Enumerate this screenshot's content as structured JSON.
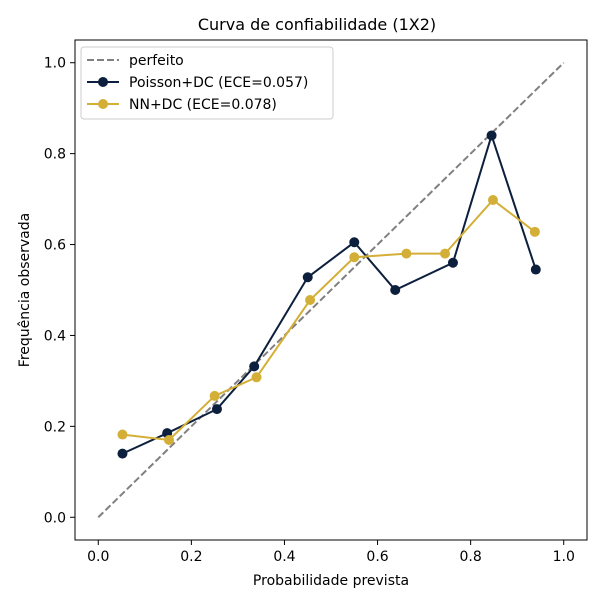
{
  "chart_data": {
    "type": "line",
    "title": "Curva de confiabilidade (1X2)",
    "xlabel": "Probabilidade prevista",
    "ylabel": "Frequência observada",
    "xlim": [
      -0.05,
      1.05
    ],
    "ylim": [
      -0.05,
      1.05
    ],
    "xticks": [
      0.0,
      0.2,
      0.4,
      0.6,
      0.8,
      1.0
    ],
    "yticks": [
      0.0,
      0.2,
      0.4,
      0.6,
      0.8,
      1.0
    ],
    "xtick_labels": [
      "0.0",
      "0.2",
      "0.4",
      "0.6",
      "0.8",
      "1.0"
    ],
    "ytick_labels": [
      "0.0",
      "0.2",
      "0.4",
      "0.6",
      "0.8",
      "1.0"
    ],
    "grid": false,
    "legend_position": "upper-left",
    "series": [
      {
        "name": "perfeito",
        "style": "dashed",
        "color": "#808080",
        "x": [
          0.0,
          1.0
        ],
        "y": [
          0.0,
          1.0
        ],
        "markers": false
      },
      {
        "name": "Poisson+DC (ECE=0.057)",
        "style": "solid",
        "color": "#0c1f3d",
        "markers": true,
        "x": [
          0.052,
          0.148,
          0.255,
          0.335,
          0.45,
          0.55,
          0.638,
          0.762,
          0.845,
          0.94
        ],
        "y": [
          0.14,
          0.185,
          0.238,
          0.332,
          0.528,
          0.605,
          0.5,
          0.56,
          0.84,
          0.545
        ]
      },
      {
        "name": "NN+DC (ECE=0.078)",
        "style": "solid",
        "color": "#d4af37",
        "markers": true,
        "x": [
          0.052,
          0.152,
          0.25,
          0.34,
          0.455,
          0.55,
          0.662,
          0.745,
          0.848,
          0.938
        ],
        "y": [
          0.182,
          0.17,
          0.267,
          0.308,
          0.478,
          0.572,
          0.58,
          0.58,
          0.698,
          0.628
        ]
      }
    ]
  }
}
